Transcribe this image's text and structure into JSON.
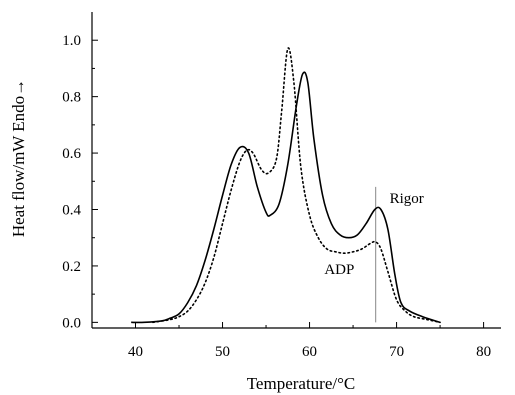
{
  "chart_data": {
    "type": "line",
    "xlabel": "Temperature/°C",
    "ylabel": "Heat flow/mW   Endo→",
    "xlim": [
      35,
      82
    ],
    "ylim": [
      -0.02,
      1.1
    ],
    "xticks": [
      40,
      50,
      60,
      70,
      80
    ],
    "yticks": [
      0.0,
      0.2,
      0.4,
      0.6,
      0.8,
      1.0
    ],
    "x_tick_labels": [
      "40",
      "50",
      "60",
      "70",
      "80"
    ],
    "y_tick_labels": [
      "0.0",
      "0.2",
      "0.4",
      "0.6",
      "0.8",
      "1.0"
    ],
    "grid": false,
    "annotations": [
      {
        "text": "Rigor",
        "x": 69.2,
        "y": 0.44
      },
      {
        "text": "ADP",
        "x": 61.7,
        "y": 0.19
      }
    ],
    "reference_line": {
      "x": 67.6,
      "y_range": [
        0.0,
        0.48
      ]
    },
    "series": [
      {
        "style": "solid",
        "points": [
          [
            39.5,
            0.0
          ],
          [
            41,
            0.0
          ],
          [
            43,
            0.005
          ],
          [
            44,
            0.015
          ],
          [
            45,
            0.03
          ],
          [
            46,
            0.07
          ],
          [
            47,
            0.13
          ],
          [
            48,
            0.22
          ],
          [
            49,
            0.33
          ],
          [
            50,
            0.45
          ],
          [
            51,
            0.56
          ],
          [
            52,
            0.62
          ],
          [
            53,
            0.6
          ],
          [
            54,
            0.48
          ],
          [
            55,
            0.39
          ],
          [
            55.5,
            0.38
          ],
          [
            56.5,
            0.42
          ],
          [
            57.5,
            0.56
          ],
          [
            58.5,
            0.77
          ],
          [
            59.2,
            0.88
          ],
          [
            59.8,
            0.85
          ],
          [
            60.5,
            0.65
          ],
          [
            61.5,
            0.45
          ],
          [
            62.5,
            0.35
          ],
          [
            63.5,
            0.31
          ],
          [
            64.5,
            0.3
          ],
          [
            65.5,
            0.31
          ],
          [
            66.5,
            0.35
          ],
          [
            67.5,
            0.4
          ],
          [
            68.2,
            0.4
          ],
          [
            69,
            0.33
          ],
          [
            69.8,
            0.17
          ],
          [
            70.5,
            0.07
          ],
          [
            71.5,
            0.04
          ],
          [
            73,
            0.02
          ],
          [
            75,
            0.0
          ]
        ]
      },
      {
        "style": "dotted",
        "points": [
          [
            42,
            0.0
          ],
          [
            44,
            0.01
          ],
          [
            45,
            0.02
          ],
          [
            46,
            0.04
          ],
          [
            47,
            0.08
          ],
          [
            48,
            0.14
          ],
          [
            49,
            0.23
          ],
          [
            50,
            0.35
          ],
          [
            51,
            0.47
          ],
          [
            52,
            0.57
          ],
          [
            52.8,
            0.61
          ],
          [
            53.5,
            0.6
          ],
          [
            54.5,
            0.54
          ],
          [
            55.3,
            0.53
          ],
          [
            56.2,
            0.58
          ],
          [
            56.8,
            0.75
          ],
          [
            57.5,
            0.97
          ],
          [
            58.2,
            0.85
          ],
          [
            59,
            0.55
          ],
          [
            60,
            0.38
          ],
          [
            61,
            0.3
          ],
          [
            62,
            0.26
          ],
          [
            63,
            0.25
          ],
          [
            64,
            0.245
          ],
          [
            65,
            0.25
          ],
          [
            66,
            0.26
          ],
          [
            67,
            0.28
          ],
          [
            67.6,
            0.285
          ],
          [
            68.2,
            0.26
          ],
          [
            69,
            0.18
          ],
          [
            70,
            0.08
          ],
          [
            71,
            0.04
          ],
          [
            72,
            0.02
          ],
          [
            73.5,
            0.01
          ],
          [
            75,
            0.0
          ]
        ]
      }
    ]
  }
}
